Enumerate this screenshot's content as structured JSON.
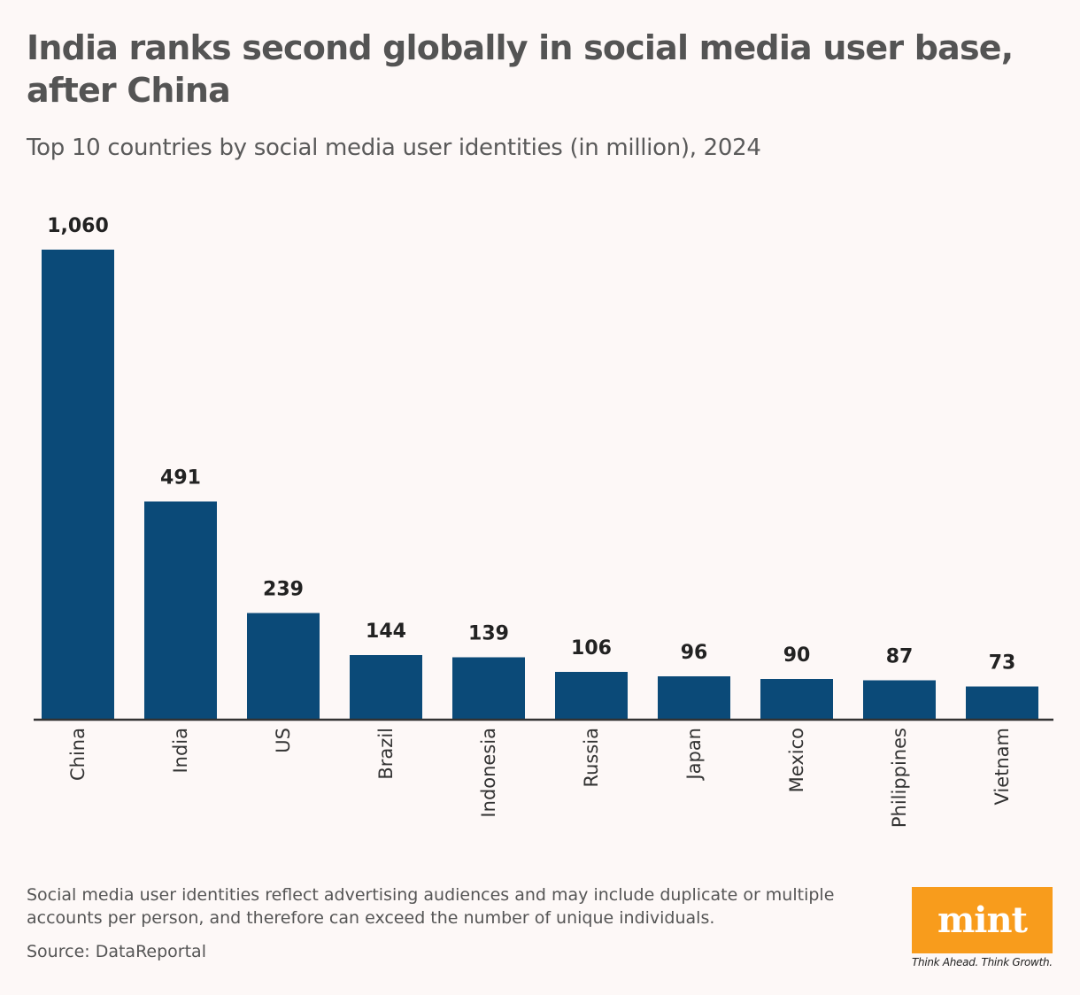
{
  "title": "India ranks second globally in social media user base, after China",
  "subtitle": "Top 10 countries by social media user identities (in million), 2024",
  "note": "Social media user identities reflect advertising audiences and may include duplicate or multiple accounts per person, and therefore can exceed the number of unique individuals.",
  "source": "Source: DataReportal",
  "logo": {
    "word": "mint",
    "tagline": "Think Ahead. Think Growth."
  },
  "colors": {
    "bar": "#0b4a78",
    "background": "#fdf8f7",
    "logo": "#f89c1c"
  },
  "chart_data": {
    "type": "bar",
    "title": "India ranks second globally in social media user base, after China",
    "subtitle": "Top 10 countries by social media user identities (in million), 2024",
    "categories": [
      "China",
      "India",
      "US",
      "Brazil",
      "Indonesia",
      "Russia",
      "Japan",
      "Mexico",
      "Philippines",
      "Vietnam"
    ],
    "values": [
      1060,
      491,
      239,
      144,
      139,
      106,
      96,
      90,
      87,
      73
    ],
    "value_labels": [
      "1,060",
      "491",
      "239",
      "144",
      "139",
      "106",
      "96",
      "90",
      "87",
      "73"
    ],
    "ylim": [
      0,
      1060
    ],
    "grid": false,
    "xlabel": "",
    "ylabel": ""
  }
}
